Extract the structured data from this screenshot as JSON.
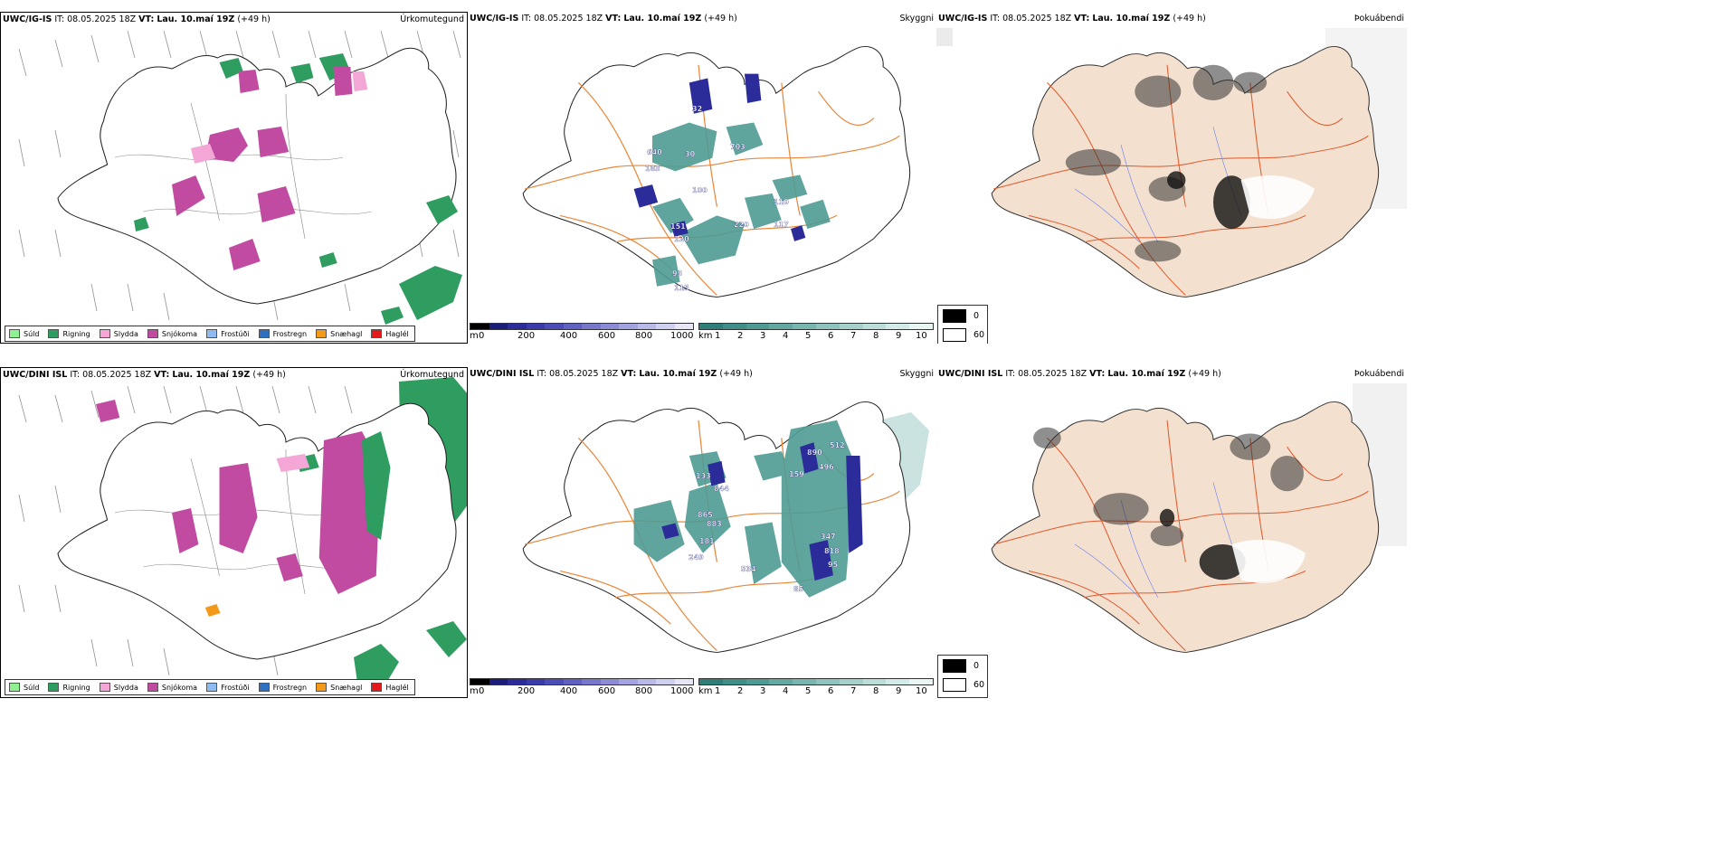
{
  "models": [
    {
      "id": "igis",
      "name": "UWC/IG-IS",
      "it_label": "IT:",
      "it_value": "08.05.2025 18Z",
      "vt_label": "VT:",
      "vt_value": "Lau. 10.maí 19Z",
      "lead": "(+49 h)"
    },
    {
      "id": "dini",
      "name": "UWC/DINI ISL",
      "it_label": "IT:",
      "it_value": "08.05.2025 18Z",
      "vt_label": "VT:",
      "vt_value": "Lau. 10.maí 19Z",
      "lead": "(+49 h)"
    }
  ],
  "panel_titles": {
    "precip_type": "Úrkomutegund",
    "cloud": "Skyggni",
    "fog": "Þokuábendi"
  },
  "precip_legend": [
    {
      "label": "Súld",
      "color": "#8ff08f"
    },
    {
      "label": "Rigning",
      "color": "#2e9d5f"
    },
    {
      "label": "Slydda",
      "color": "#f4a6d7"
    },
    {
      "label": "Snjókoma",
      "color": "#c04ba0"
    },
    {
      "label": "Frostúði",
      "color": "#8fbcf0"
    },
    {
      "label": "Frostregn",
      "color": "#2f6fc0"
    },
    {
      "label": "Snæhagl",
      "color": "#f39a1a"
    },
    {
      "label": "Haglél",
      "color": "#e31a1c"
    }
  ],
  "cloud_base_bar": {
    "unit": "m",
    "ticks": [
      "0",
      "200",
      "400",
      "600",
      "800",
      "1000"
    ],
    "colors": [
      "#000000",
      "#1c1c7a",
      "#2b2b9a",
      "#3b3bab",
      "#4d4db8",
      "#6161c2",
      "#7777cc",
      "#8c8cd6",
      "#a3a3df",
      "#babae8",
      "#d0d0f0",
      "#e6e6f7"
    ]
  },
  "visibility_bar": {
    "unit": "km",
    "ticks": [
      "1",
      "2",
      "3",
      "4",
      "5",
      "6",
      "7",
      "8",
      "9",
      "10"
    ],
    "colors": [
      "#2f7f78",
      "#3f8f88",
      "#4f9b94",
      "#63a8a1",
      "#79b6af",
      "#8fc3bd",
      "#a6d0cb",
      "#bcded9",
      "#d3ebe8",
      "#eaf6f4"
    ]
  },
  "fog_legend": [
    {
      "label": "0",
      "color": "#000000"
    },
    {
      "label": "60",
      "color": "#ffffff"
    }
  ],
  "cloud_labels": {
    "igis": [
      "32",
      "640",
      "183",
      "30",
      "703",
      "100",
      "110",
      "151",
      "220",
      "117",
      "120",
      "93",
      "115"
    ],
    "dini": [
      "890",
      "512",
      "159",
      "496",
      "133",
      "844",
      "865",
      "883",
      "181",
      "249",
      "534",
      "347",
      "818",
      "95",
      "85"
    ]
  }
}
